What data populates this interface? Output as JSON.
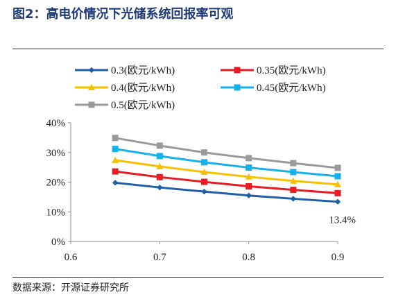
{
  "title": "图2：高电价情况下光储系统回报率可观",
  "source": "数据来源：开源证券研究所",
  "chart_data": {
    "type": "line",
    "x": [
      0.65,
      0.7,
      0.75,
      0.8,
      0.85,
      0.9
    ],
    "xlim": [
      0.6,
      0.9
    ],
    "ylim": [
      0,
      0.4
    ],
    "x_ticks": [
      "0.6",
      "0.7",
      "0.8",
      "0.9"
    ],
    "x_tick_values": [
      0.6,
      0.7,
      0.8,
      0.9
    ],
    "y_ticks": [
      "0%",
      "10%",
      "20%",
      "30%",
      "40%"
    ],
    "y_tick_values": [
      0,
      0.1,
      0.2,
      0.3,
      0.4
    ],
    "legend_position": "top-left",
    "grid": false,
    "series": [
      {
        "name": "0.3(欧元/kWh)",
        "color": "#1f5fa8",
        "marker": "diamond",
        "values": [
          0.198,
          0.182,
          0.168,
          0.155,
          0.144,
          0.134
        ]
      },
      {
        "name": "0.35(欧元/kWh)",
        "color": "#e51c23",
        "marker": "square",
        "values": [
          0.236,
          0.217,
          0.201,
          0.186,
          0.174,
          0.163
        ]
      },
      {
        "name": "0.4(欧元/kWh)",
        "color": "#f5c000",
        "marker": "triangle",
        "values": [
          0.274,
          0.253,
          0.234,
          0.218,
          0.204,
          0.192
        ]
      },
      {
        "name": "0.45(欧元/kWh)",
        "color": "#17b0ea",
        "marker": "square",
        "values": [
          0.312,
          0.288,
          0.267,
          0.249,
          0.234,
          0.22
        ]
      },
      {
        "name": "0.5(欧元/kWh)",
        "color": "#9a9a9a",
        "marker": "square",
        "values": [
          0.349,
          0.323,
          0.3,
          0.281,
          0.264,
          0.248
        ]
      }
    ],
    "annotations": [
      {
        "text": "13.4%",
        "series": 0,
        "point": 5
      }
    ]
  }
}
